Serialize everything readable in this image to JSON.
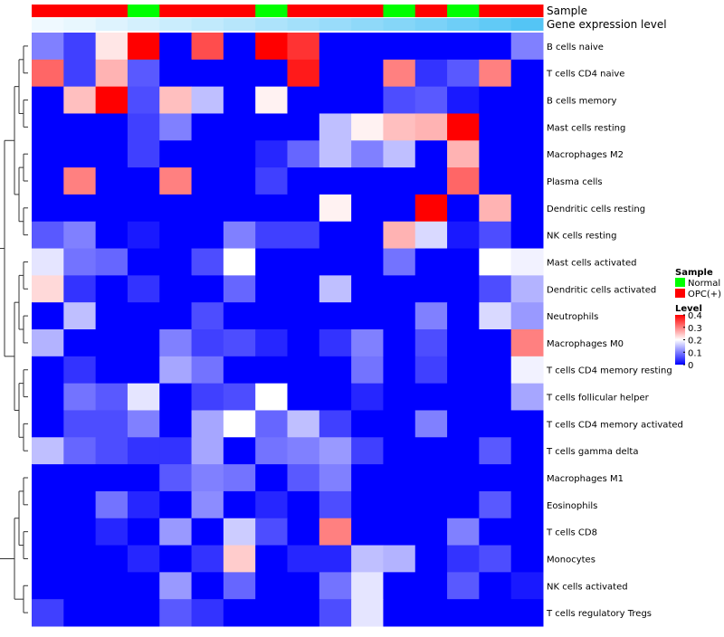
{
  "chart_data": {
    "type": "heatmap",
    "annotation_tracks": [
      "Sample",
      "Gene expression level"
    ],
    "sample_groups": [
      "OPC(+)",
      "OPC(+)",
      "OPC(+)",
      "Normal",
      "OPC(+)",
      "OPC(+)",
      "OPC(+)",
      "Normal",
      "OPC(+)",
      "OPC(+)",
      "OPC(+)",
      "Normal",
      "OPC(+)",
      "Normal",
      "OPC(+)",
      "OPC(+)"
    ],
    "gene_expression_level": [
      0.02,
      0.06,
      0.12,
      0.18,
      0.24,
      0.3,
      0.36,
      0.42,
      0.48,
      0.54,
      0.6,
      0.66,
      0.72,
      0.8,
      0.88,
      0.96
    ],
    "rows": [
      "B cells naive",
      "T cells CD4 naive",
      "B cells memory",
      "Mast cells resting",
      "Macrophages M2",
      "Plasma cells",
      "Dendritic cells resting",
      "NK cells resting",
      "Mast cells activated",
      "Dendritic cells activated",
      "Neutrophils",
      "Macrophages M0",
      "T cells CD4 memory resting",
      "T cells follicular helper",
      "T cells CD4 memory activated",
      "T cells gamma delta",
      "Macrophages M1",
      "Eosinophils",
      "T cells CD8",
      "Monocytes",
      "NK cells activated",
      "T cells regulatory  Tregs"
    ],
    "values": [
      [
        0.1,
        0.05,
        0.22,
        0.4,
        0.0,
        0.34,
        0.0,
        0.4,
        0.36,
        0.0,
        0.0,
        0.0,
        0.0,
        0.0,
        0.0,
        0.1
      ],
      [
        0.32,
        0.05,
        0.26,
        0.07,
        0.0,
        0.0,
        0.0,
        0.0,
        0.38,
        0.0,
        0.0,
        0.3,
        0.04,
        0.07,
        0.3,
        0.0
      ],
      [
        0.0,
        0.25,
        0.4,
        0.06,
        0.25,
        0.15,
        0.0,
        0.21,
        0.0,
        0.0,
        0.0,
        0.06,
        0.07,
        0.02,
        0.0,
        0.0
      ],
      [
        0.0,
        0.0,
        0.0,
        0.05,
        0.1,
        0.0,
        0.0,
        0.0,
        0.0,
        0.15,
        0.21,
        0.25,
        0.26,
        0.4,
        0.0,
        0.0
      ],
      [
        0.0,
        0.0,
        0.0,
        0.05,
        0.0,
        0.0,
        0.0,
        0.03,
        0.08,
        0.15,
        0.1,
        0.15,
        0.0,
        0.26,
        0.0,
        0.0
      ],
      [
        0.0,
        0.3,
        0.0,
        0.0,
        0.3,
        0.0,
        0.0,
        0.05,
        0.0,
        0.0,
        0.0,
        0.0,
        0.0,
        0.32,
        0.0,
        0.0
      ],
      [
        0.0,
        0.0,
        0.0,
        0.0,
        0.0,
        0.0,
        0.0,
        0.0,
        0.0,
        0.21,
        0.0,
        0.0,
        0.4,
        0.0,
        0.26,
        0.0
      ],
      [
        0.07,
        0.1,
        0.0,
        0.02,
        0.0,
        0.0,
        0.1,
        0.05,
        0.05,
        0.0,
        0.0,
        0.26,
        0.17,
        0.02,
        0.06,
        0.0
      ],
      [
        0.18,
        0.09,
        0.08,
        0.0,
        0.0,
        0.06,
        0.2,
        0.0,
        0.0,
        0.0,
        0.0,
        0.09,
        0.0,
        0.0,
        0.2,
        0.19
      ],
      [
        0.23,
        0.04,
        0.0,
        0.04,
        0.0,
        0.0,
        0.08,
        0.0,
        0.0,
        0.15,
        0.0,
        0.0,
        0.0,
        0.0,
        0.06,
        0.14
      ],
      [
        0.0,
        0.15,
        0.0,
        0.0,
        0.0,
        0.06,
        0.0,
        0.0,
        0.0,
        0.0,
        0.0,
        0.0,
        0.1,
        0.0,
        0.17,
        0.12
      ],
      [
        0.14,
        0.0,
        0.0,
        0.0,
        0.1,
        0.05,
        0.06,
        0.03,
        0.0,
        0.04,
        0.1,
        0.0,
        0.06,
        0.0,
        0.0,
        0.3
      ],
      [
        0.0,
        0.04,
        0.0,
        0.0,
        0.13,
        0.09,
        0.0,
        0.0,
        0.0,
        0.0,
        0.09,
        0.0,
        0.05,
        0.0,
        0.0,
        0.19
      ],
      [
        0.0,
        0.09,
        0.07,
        0.18,
        0.0,
        0.05,
        0.06,
        0.2,
        0.0,
        0.0,
        0.03,
        0.0,
        0.0,
        0.0,
        0.0,
        0.13
      ],
      [
        0.0,
        0.06,
        0.06,
        0.1,
        0.0,
        0.13,
        0.2,
        0.08,
        0.15,
        0.05,
        0.0,
        0.0,
        0.1,
        0.0,
        0.0,
        0.0
      ],
      [
        0.15,
        0.08,
        0.06,
        0.04,
        0.04,
        0.13,
        0.0,
        0.09,
        0.1,
        0.12,
        0.05,
        0.0,
        0.0,
        0.0,
        0.07,
        0.0
      ],
      [
        0.0,
        0.0,
        0.0,
        0.0,
        0.07,
        0.1,
        0.09,
        0.0,
        0.07,
        0.1,
        0.0,
        0.0,
        0.0,
        0.0,
        0.0,
        0.0
      ],
      [
        0.0,
        0.0,
        0.09,
        0.03,
        0.0,
        0.11,
        0.0,
        0.03,
        0.0,
        0.06,
        0.0,
        0.0,
        0.0,
        0.0,
        0.07,
        0.0
      ],
      [
        0.0,
        0.0,
        0.03,
        0.0,
        0.12,
        0.0,
        0.16,
        0.06,
        0.0,
        0.3,
        0.0,
        0.0,
        0.0,
        0.1,
        0.0,
        0.0
      ],
      [
        0.0,
        0.0,
        0.0,
        0.03,
        0.0,
        0.04,
        0.24,
        0.0,
        0.03,
        0.03,
        0.15,
        0.14,
        0.0,
        0.04,
        0.06,
        0.0
      ],
      [
        0.0,
        0.0,
        0.0,
        0.0,
        0.12,
        0.0,
        0.08,
        0.0,
        0.0,
        0.09,
        0.18,
        0.0,
        0.0,
        0.07,
        0.0,
        0.02
      ],
      [
        0.05,
        0.0,
        0.0,
        0.0,
        0.07,
        0.04,
        0.0,
        0.0,
        0.0,
        0.06,
        0.18,
        0.0,
        0.0,
        0.0,
        0.0,
        0.0
      ]
    ],
    "color_scale": {
      "min": 0,
      "max": 0.4,
      "low": "#0000FF",
      "mid": "#FFFFFF",
      "high": "#FF0000"
    },
    "legend_sample": {
      "title": "Sample",
      "items": [
        {
          "label": "Normal",
          "color": "#00FF00"
        },
        {
          "label": "OPC(+)",
          "color": "#FF0000"
        }
      ]
    },
    "legend_level": {
      "title": "Level",
      "ticks": [
        {
          "value": 0.4,
          "label": "0.4"
        },
        {
          "value": 0.3,
          "label": "0.3"
        },
        {
          "value": 0.2,
          "label": "0.2"
        },
        {
          "value": 0.1,
          "label": "0.1"
        },
        {
          "value": 0,
          "label": "0"
        }
      ]
    },
    "group_colors": {
      "Normal": "#00FF00",
      "OPC(+)": "#FF0000"
    },
    "expression_colors": {
      "low": "#F2FAFF",
      "high": "#4DC3F5"
    },
    "dendrogram": "row"
  }
}
